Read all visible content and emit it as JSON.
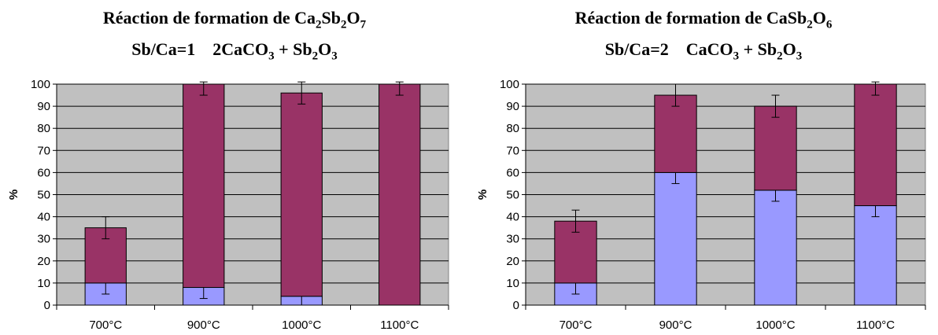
{
  "chart_data": [
    {
      "type": "bar",
      "stacked": true,
      "title_lines": [
        [
          "Réaction de formation de Ca",
          {
            "sub": "2"
          },
          "Sb",
          {
            "sub": "2"
          },
          "O",
          {
            "sub": "7"
          }
        ],
        [
          "Sb/Ca=1    2CaCO",
          {
            "sub": "3"
          },
          " + Sb",
          {
            "sub": "2"
          },
          "O",
          {
            "sub": "3"
          }
        ]
      ],
      "ylabel": "%",
      "ylim": [
        0,
        100
      ],
      "yticks": [
        0,
        10,
        20,
        30,
        40,
        50,
        60,
        70,
        80,
        90,
        100
      ],
      "grid": true,
      "categories": [
        "700°C",
        "900°C",
        "1000°C",
        "1100°C"
      ],
      "series": [
        {
          "color": "#9999ff",
          "values": [
            10,
            8,
            4,
            0
          ],
          "error": [
            5,
            5,
            5,
            5
          ]
        },
        {
          "color": "#993366",
          "values": [
            25,
            92,
            92,
            100
          ],
          "error": [
            5,
            5,
            5,
            5
          ]
        }
      ]
    },
    {
      "type": "bar",
      "stacked": true,
      "title_lines": [
        [
          "Réaction de formation de CaSb",
          {
            "sub": "2"
          },
          "O",
          {
            "sub": "6"
          }
        ],
        [
          "Sb/Ca=2    CaCO",
          {
            "sub": "3"
          },
          " + Sb",
          {
            "sub": "2"
          },
          "O",
          {
            "sub": "3"
          }
        ]
      ],
      "ylabel": "%",
      "ylim": [
        0,
        100
      ],
      "yticks": [
        0,
        10,
        20,
        30,
        40,
        50,
        60,
        70,
        80,
        90,
        100
      ],
      "grid": true,
      "categories": [
        "700°C",
        "900°C",
        "1000°C",
        "1100°C"
      ],
      "series": [
        {
          "color": "#9999ff",
          "values": [
            10,
            60,
            52,
            45
          ],
          "error": [
            5,
            5,
            5,
            5
          ]
        },
        {
          "color": "#993366",
          "values": [
            28,
            35,
            38,
            55
          ],
          "error": [
            5,
            5,
            5,
            5
          ]
        }
      ]
    }
  ]
}
